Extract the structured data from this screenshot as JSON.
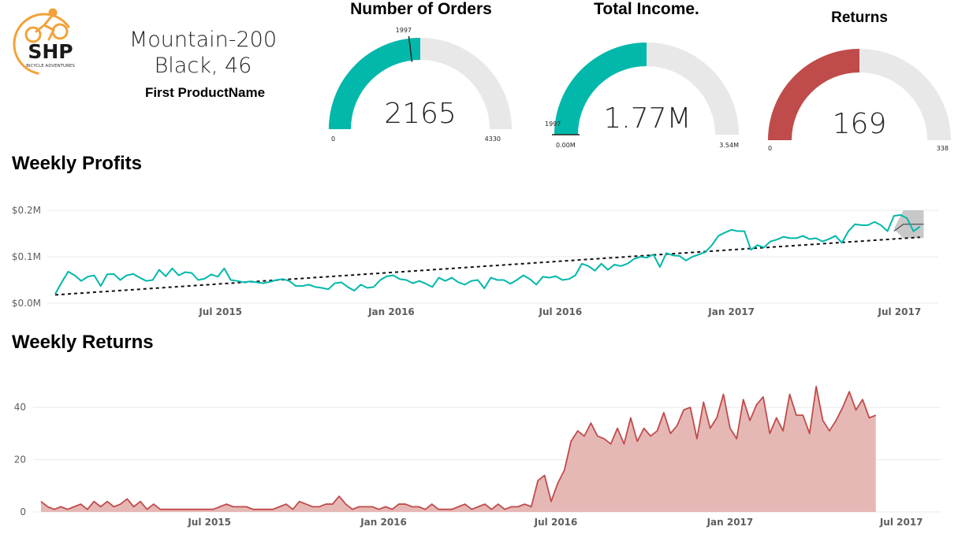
{
  "logo": {
    "text": "SHP",
    "subtext": "BICYCLE ADVENTURES",
    "color": "#f2a23a"
  },
  "product_card": {
    "line1": "Mountain-200",
    "line2": "Black, 46",
    "label": "First ProductName"
  },
  "gauges": {
    "orders": {
      "title": "Number of Orders",
      "value": "2165",
      "min": "0",
      "max": "4330",
      "target": "1997",
      "fill_fraction": 0.5,
      "target_fraction": 0.461,
      "color": "#01b8aa"
    },
    "income": {
      "title": "Total Income.",
      "value": "1.77M",
      "min": "0.00M",
      "max": "3.54M",
      "target": "1997",
      "fill_fraction": 0.5,
      "target_fraction": 0.0,
      "color": "#01b8aa"
    },
    "returns": {
      "title": "Returns",
      "value": "169",
      "min": "0",
      "max": "338",
      "fill_fraction": 0.5,
      "color": "#c04b4b"
    }
  },
  "gauge_track_color": "#e8e8e8",
  "sections": {
    "profits_title": "Weekly Profits",
    "returns_title": "Weekly Returns"
  },
  "chart_data": [
    {
      "type": "line",
      "title": "Weekly Profits",
      "x_ticks": [
        "Jul 2015",
        "Jan 2016",
        "Jul 2016",
        "Jan 2017",
        "Jul 2017"
      ],
      "y_ticks": [
        "$0.0M",
        "$0.1M",
        "$0.2M"
      ],
      "ylim": [
        0,
        0.2
      ],
      "x_start": "2015-01-04",
      "x_end": "2017-07-30",
      "series_color": "#01b8aa",
      "trend_line": {
        "from": 0.018,
        "to": 0.142
      },
      "forecast": {
        "start": "2017-06-25",
        "value": 0.17,
        "low": 0.14,
        "high": 0.2
      },
      "grid": true,
      "series": [
        {
          "values": [
            0.02,
            0.045,
            0.068,
            0.06,
            0.048,
            0.057,
            0.06,
            0.037,
            0.062,
            0.063,
            0.05,
            0.06,
            0.063,
            0.055,
            0.048,
            0.05,
            0.072,
            0.058,
            0.075,
            0.06,
            0.067,
            0.065,
            0.05,
            0.053,
            0.062,
            0.057,
            0.075,
            0.05,
            0.048,
            0.045,
            0.047,
            0.045,
            0.043,
            0.046,
            0.05,
            0.052,
            0.048,
            0.037,
            0.037,
            0.04,
            0.035,
            0.033,
            0.03,
            0.043,
            0.045,
            0.035,
            0.027,
            0.04,
            0.033,
            0.035,
            0.05,
            0.058,
            0.06,
            0.052,
            0.05,
            0.043,
            0.048,
            0.042,
            0.035,
            0.055,
            0.048,
            0.055,
            0.045,
            0.04,
            0.048,
            0.05,
            0.032,
            0.055,
            0.05,
            0.05,
            0.042,
            0.05,
            0.06,
            0.052,
            0.04,
            0.057,
            0.055,
            0.058,
            0.05,
            0.052,
            0.06,
            0.085,
            0.08,
            0.07,
            0.085,
            0.072,
            0.083,
            0.08,
            0.085,
            0.095,
            0.1,
            0.098,
            0.105,
            0.078,
            0.108,
            0.103,
            0.102,
            0.092,
            0.1,
            0.105,
            0.11,
            0.125,
            0.145,
            0.152,
            0.158,
            0.155,
            0.155,
            0.115,
            0.125,
            0.12,
            0.133,
            0.137,
            0.143,
            0.14,
            0.14,
            0.145,
            0.138,
            0.14,
            0.133,
            0.138,
            0.145,
            0.13,
            0.155,
            0.17,
            0.168,
            0.168,
            0.175,
            0.168,
            0.155,
            0.188,
            0.19,
            0.183,
            0.155,
            0.165
          ]
        }
      ]
    },
    {
      "type": "area",
      "title": "Weekly Returns",
      "x_ticks": [
        "Jul 2015",
        "Jan 2016",
        "Jul 2016",
        "Jan 2017",
        "Jul 2017"
      ],
      "y_ticks": [
        "0",
        "20",
        "40"
      ],
      "ylim": [
        0,
        50
      ],
      "x_start": "2015-01-04",
      "x_end": "2017-07-30",
      "series_color": "#c04b4b",
      "fill_color": "#e6b8b5",
      "grid": true,
      "series": [
        {
          "values": [
            4,
            2,
            1,
            2,
            1,
            2,
            3,
            1,
            4,
            2,
            4,
            2,
            3,
            5,
            2,
            4,
            1,
            3,
            1,
            1,
            1,
            1,
            1,
            1,
            1,
            1,
            1,
            2,
            3,
            2,
            2,
            2,
            1,
            1,
            1,
            1,
            2,
            3,
            1,
            4,
            3,
            2,
            2,
            3,
            3,
            6,
            3,
            1,
            2,
            2,
            2,
            1,
            2,
            1,
            3,
            3,
            2,
            2,
            1,
            3,
            1,
            1,
            1,
            2,
            3,
            1,
            2,
            3,
            1,
            3,
            1,
            2,
            2,
            3,
            2,
            12,
            14,
            4,
            11,
            16,
            27,
            31,
            29,
            34,
            29,
            28,
            26,
            32,
            26,
            36,
            27,
            32,
            29,
            31,
            38,
            30,
            33,
            39,
            40,
            28,
            42,
            32,
            36,
            45,
            32,
            28,
            43,
            35,
            41,
            44,
            30,
            36,
            31,
            45,
            37,
            37,
            30,
            48,
            35,
            31,
            35,
            40,
            46,
            39,
            43,
            36,
            37
          ]
        }
      ]
    }
  ]
}
